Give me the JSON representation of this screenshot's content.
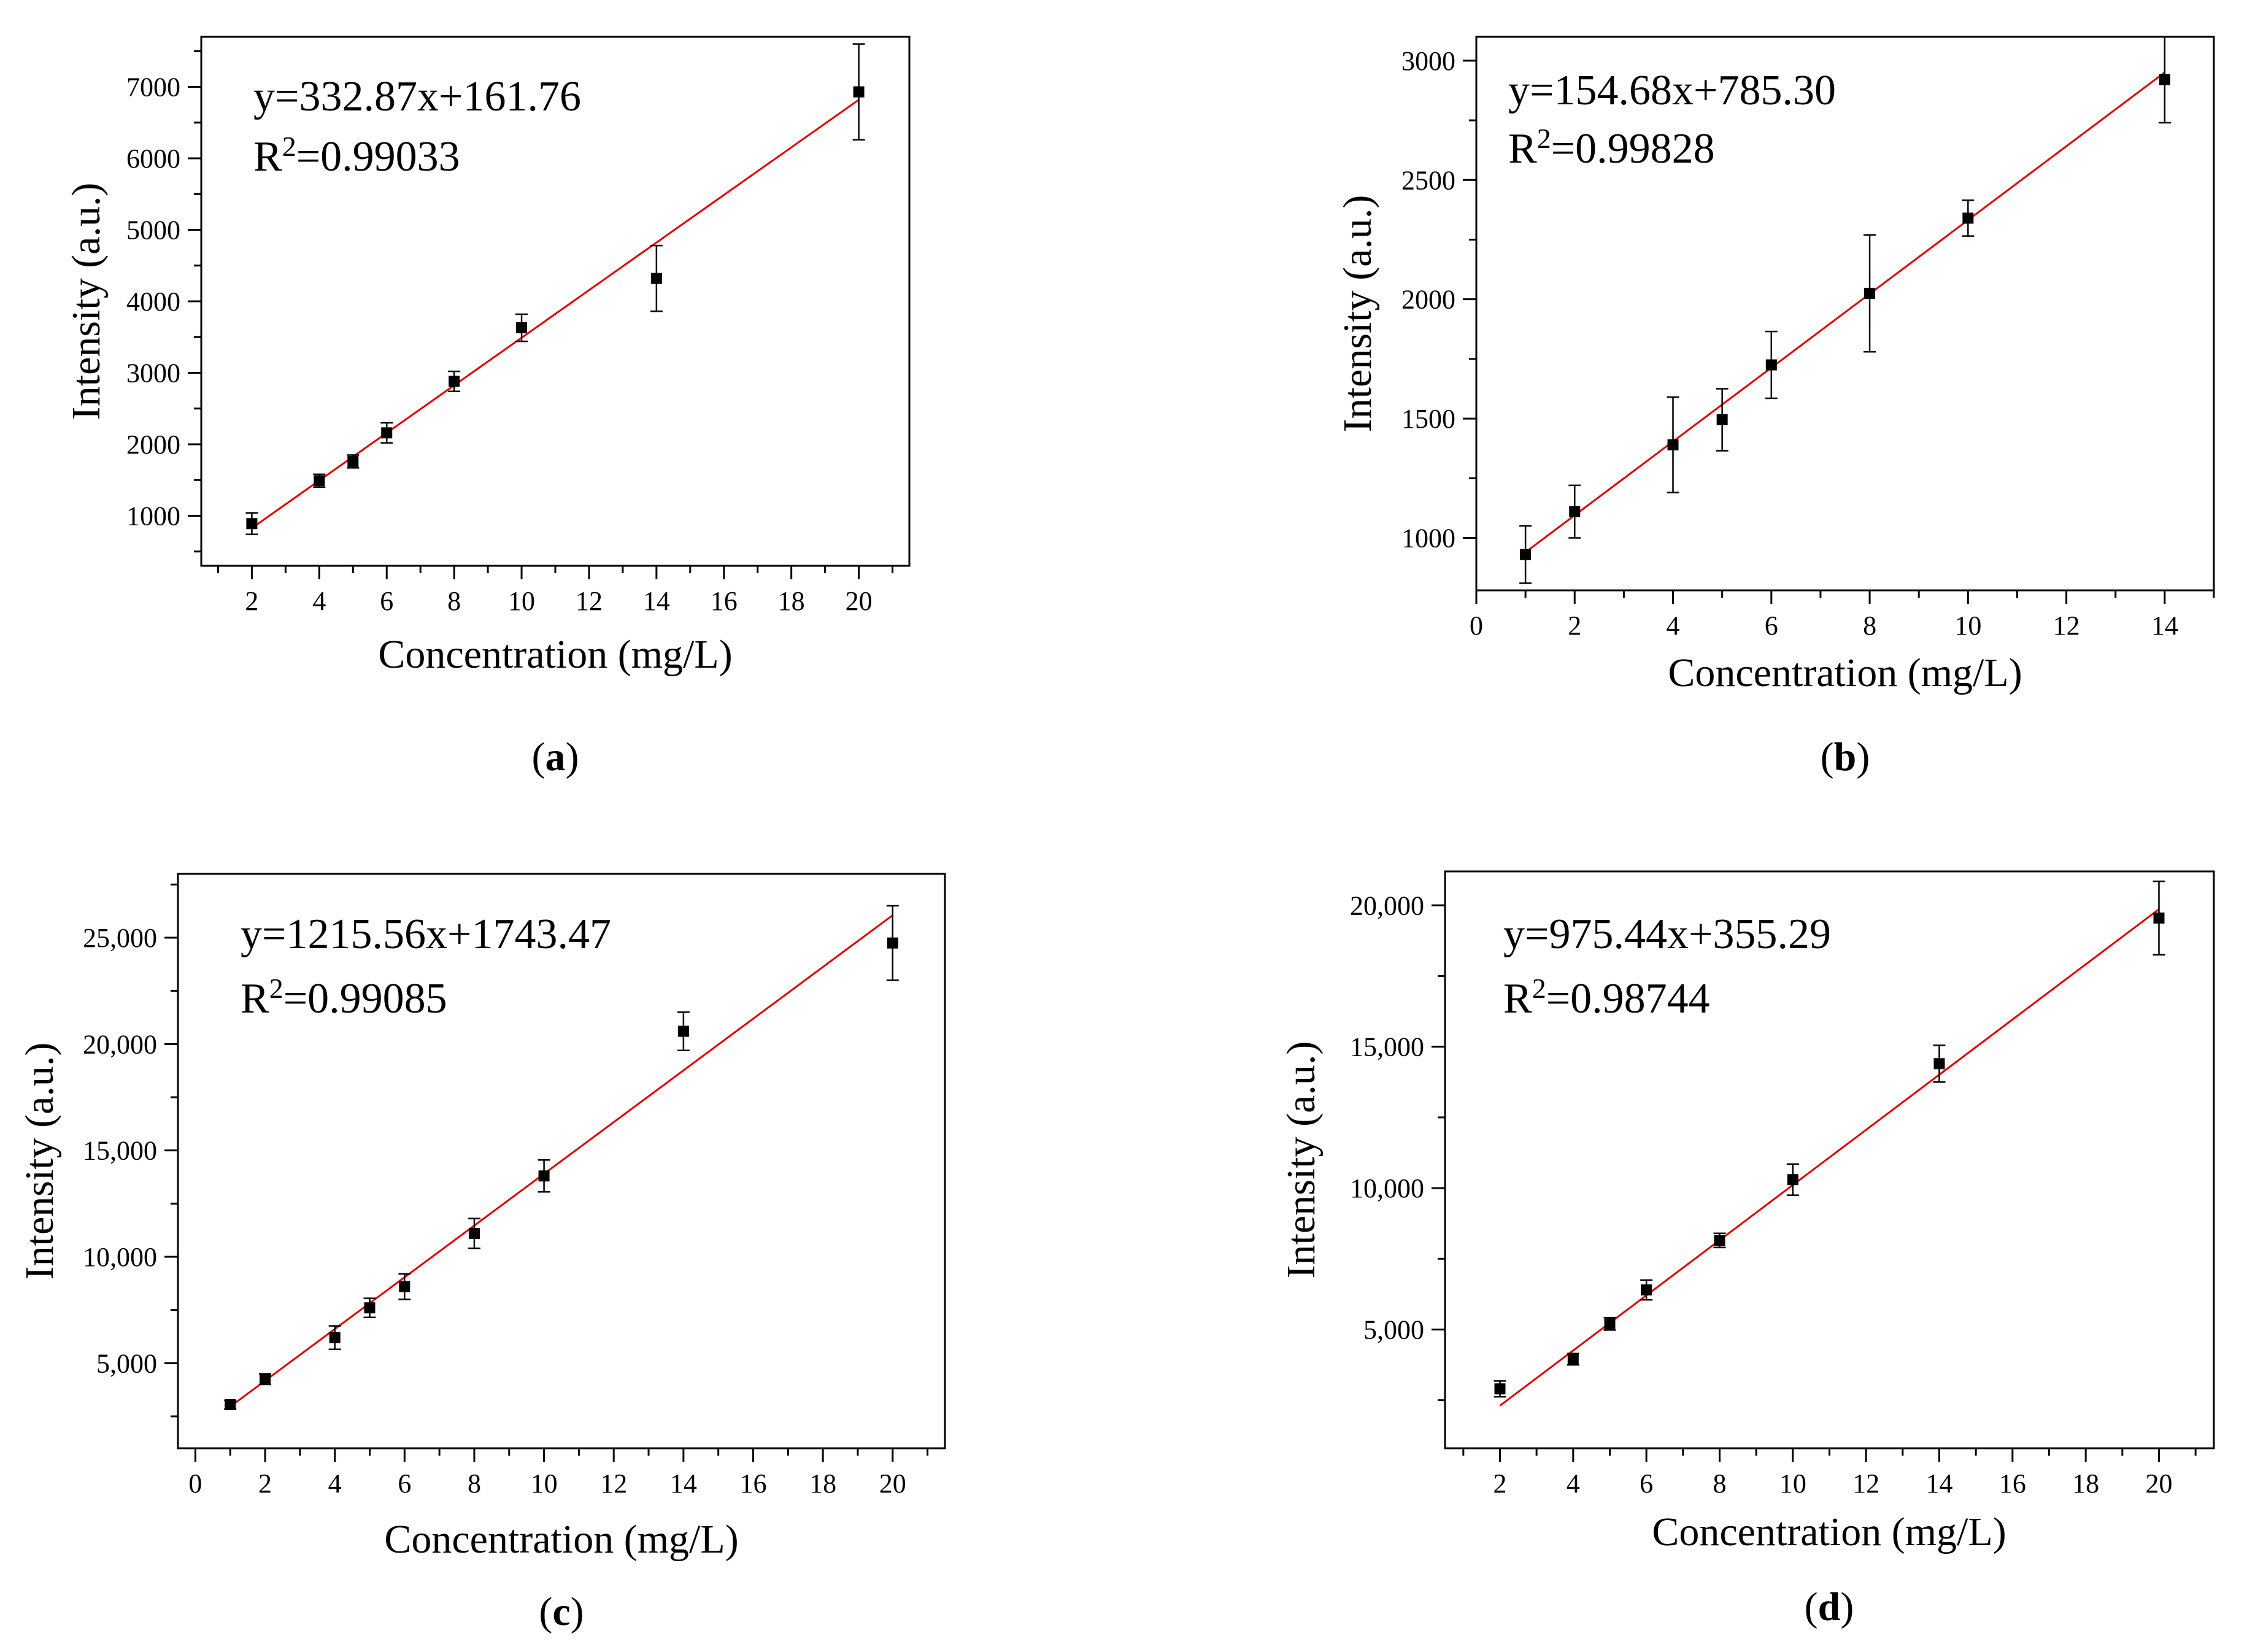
{
  "chart_data": [
    {
      "id": "a",
      "type": "scatter",
      "caption": "a",
      "xlabel": "Concentration (mg/L)",
      "ylabel": "Intensity (a.u.)",
      "equation": "y=332.87x+161.76",
      "r2_prefix": "R",
      "r2_sup": "2",
      "r2_value": "=0.99033",
      "xlim": [
        0.5,
        21.5
      ],
      "ylim": [
        300,
        7700
      ],
      "x_ticks": [
        2,
        4,
        6,
        8,
        10,
        12,
        14,
        16,
        18,
        20
      ],
      "x_minor_ticks": [
        1,
        3,
        5,
        7,
        9,
        11,
        13,
        15,
        17,
        19,
        21
      ],
      "x_tick_labels": [
        "2",
        "4",
        "6",
        "8",
        "10",
        "12",
        "14",
        "16",
        "18",
        "20"
      ],
      "y_ticks": [
        1000,
        2000,
        3000,
        4000,
        5000,
        6000,
        7000
      ],
      "y_minor_ticks": [
        500,
        1500,
        2500,
        3500,
        4500,
        5500,
        6500,
        7500
      ],
      "y_tick_labels": [
        "1000",
        "2000",
        "3000",
        "4000",
        "5000",
        "6000",
        "7000"
      ],
      "fit": {
        "slope": 332.87,
        "intercept": 161.76,
        "x_range": [
          2,
          20
        ]
      },
      "points": [
        {
          "x": 2,
          "y": 890,
          "err": 150
        },
        {
          "x": 4,
          "y": 1490,
          "err": 90
        },
        {
          "x": 5,
          "y": 1760,
          "err": 90
        },
        {
          "x": 6,
          "y": 2160,
          "err": 140
        },
        {
          "x": 8,
          "y": 2880,
          "err": 140
        },
        {
          "x": 10,
          "y": 3630,
          "err": 190
        },
        {
          "x": 14,
          "y": 4320,
          "err": 460
        },
        {
          "x": 20,
          "y": 6930,
          "err": 670
        }
      ]
    },
    {
      "id": "b",
      "type": "scatter",
      "caption": "b",
      "xlabel": "Concentration (mg/L)",
      "ylabel": "Intensity (a.u.)",
      "equation": "y=154.68x+785.30",
      "r2_prefix": "R",
      "r2_sup": "2",
      "r2_value": "=0.99828",
      "xlim": [
        0,
        15
      ],
      "ylim": [
        780,
        3100
      ],
      "x_ticks": [
        0,
        2,
        4,
        6,
        8,
        10,
        12,
        14
      ],
      "x_minor_ticks": [
        1,
        3,
        5,
        7,
        9,
        11,
        13,
        15
      ],
      "x_tick_labels": [
        "0",
        "2",
        "4",
        "6",
        "8",
        "10",
        "12",
        "14"
      ],
      "y_ticks": [
        1000,
        1500,
        2000,
        2500,
        3000
      ],
      "y_minor_ticks": [
        1250,
        1750,
        2250,
        2750
      ],
      "y_tick_labels": [
        "1000",
        "1500",
        "2000",
        "2500",
        "3000"
      ],
      "fit": {
        "slope": 154.68,
        "intercept": 785.3,
        "x_range": [
          1,
          14
        ]
      },
      "points": [
        {
          "x": 1,
          "y": 930,
          "err": 120
        },
        {
          "x": 2,
          "y": 1110,
          "err": 110
        },
        {
          "x": 4,
          "y": 1390,
          "err": 200
        },
        {
          "x": 5,
          "y": 1495,
          "err": 130
        },
        {
          "x": 6,
          "y": 1725,
          "err": 140
        },
        {
          "x": 8,
          "y": 2025,
          "err": 245
        },
        {
          "x": 10,
          "y": 2340,
          "err": 75
        },
        {
          "x": 14,
          "y": 2920,
          "err": 180
        }
      ]
    },
    {
      "id": "c",
      "type": "scatter",
      "caption": "c",
      "xlabel": "Concentration (mg/L)",
      "ylabel": "Intensity (a.u.)",
      "equation": "y=1215.56x+1743.47",
      "r2_prefix": "R",
      "r2_sup": "2",
      "r2_value": "=0.99085",
      "xlim": [
        -0.5,
        21.5
      ],
      "ylim": [
        1000,
        28000
      ],
      "x_ticks": [
        0,
        2,
        4,
        6,
        8,
        10,
        12,
        14,
        16,
        18,
        20
      ],
      "x_minor_ticks": [
        1,
        3,
        5,
        7,
        9,
        11,
        13,
        15,
        17,
        19,
        21
      ],
      "x_tick_labels": [
        "0",
        "2",
        "4",
        "6",
        "8",
        "10",
        "12",
        "14",
        "16",
        "18",
        "20"
      ],
      "y_ticks": [
        5000,
        10000,
        15000,
        20000,
        25000
      ],
      "y_minor_ticks": [
        2500,
        7500,
        12500,
        17500,
        22500,
        27500
      ],
      "y_tick_labels": [
        "5,000",
        "10,000",
        "15,000",
        "20,000",
        "25,000"
      ],
      "fit": {
        "slope": 1215.56,
        "intercept": 1743.47,
        "x_range": [
          1,
          20
        ]
      },
      "points": [
        {
          "x": 1,
          "y": 3050,
          "err": 200
        },
        {
          "x": 2,
          "y": 4250,
          "err": 250
        },
        {
          "x": 4,
          "y": 6200,
          "err": 550
        },
        {
          "x": 5,
          "y": 7600,
          "err": 450
        },
        {
          "x": 6,
          "y": 8600,
          "err": 600
        },
        {
          "x": 8,
          "y": 11100,
          "err": 700
        },
        {
          "x": 10,
          "y": 13800,
          "err": 750
        },
        {
          "x": 14,
          "y": 20600,
          "err": 900
        },
        {
          "x": 20,
          "y": 24750,
          "err": 1750
        }
      ]
    },
    {
      "id": "d",
      "type": "scatter",
      "caption": "d",
      "xlabel": "Concentration (mg/L)",
      "ylabel": "Intensity (a.u.)",
      "equation": "y=975.44x+355.29",
      "r2_prefix": "R",
      "r2_sup": "2",
      "r2_value": "=0.98744",
      "xlim": [
        0.5,
        21.5
      ],
      "ylim": [
        800,
        21200
      ],
      "x_ticks": [
        2,
        4,
        6,
        8,
        10,
        12,
        14,
        16,
        18,
        20
      ],
      "x_minor_ticks": [
        1,
        3,
        5,
        7,
        9,
        11,
        13,
        15,
        17,
        19,
        21
      ],
      "x_tick_labels": [
        "2",
        "4",
        "6",
        "8",
        "10",
        "12",
        "14",
        "16",
        "18",
        "20"
      ],
      "y_ticks": [
        5000,
        10000,
        15000,
        20000
      ],
      "y_minor_ticks": [
        2500,
        7500,
        12500,
        17500
      ],
      "y_tick_labels": [
        "5,000",
        "10,000",
        "15,000",
        "20,000"
      ],
      "fit": {
        "slope": 975.44,
        "intercept": 355.29,
        "x_range": [
          2,
          20
        ]
      },
      "points": [
        {
          "x": 2,
          "y": 2900,
          "err": 280
        },
        {
          "x": 4,
          "y": 3950,
          "err": 200
        },
        {
          "x": 5,
          "y": 5200,
          "err": 220
        },
        {
          "x": 6,
          "y": 6400,
          "err": 350
        },
        {
          "x": 8,
          "y": 8150,
          "err": 250
        },
        {
          "x": 10,
          "y": 10300,
          "err": 550
        },
        {
          "x": 14,
          "y": 14400,
          "err": 650
        },
        {
          "x": 20,
          "y": 19550,
          "err": 1300
        }
      ]
    }
  ]
}
